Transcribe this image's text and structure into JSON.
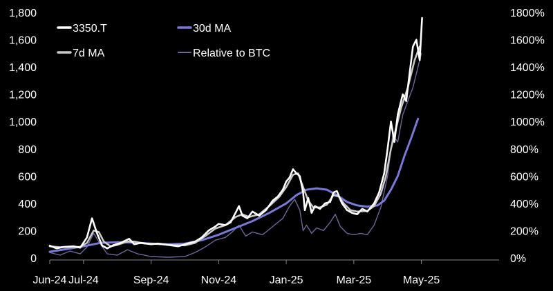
{
  "chart_data": {
    "type": "line",
    "title": "",
    "xlabel": "",
    "ylabel": "",
    "x_tick_labels": [
      "Jun-24",
      "Jul-24",
      "Sep-24",
      "Nov-24",
      "Jan-25",
      "Mar-25",
      "May-25"
    ],
    "x_tick_months": [
      0,
      1,
      3,
      5,
      7,
      9,
      11
    ],
    "left_axis": {
      "ticks": [
        0,
        200,
        400,
        600,
        800,
        1000,
        1200,
        1400,
        1600,
        1800
      ],
      "tick_labels": [
        "0",
        "200",
        "400",
        "600",
        "800",
        "1,000",
        "1,200",
        "1,400",
        "1,600",
        "1,800"
      ],
      "ylim": [
        0,
        1800
      ]
    },
    "right_axis": {
      "ticks": [
        0,
        200,
        400,
        600,
        800,
        1000,
        1200,
        1400,
        1600,
        1800
      ],
      "tick_labels": [
        "0%",
        "200%",
        "400%",
        "600%",
        "800%",
        "1000%",
        "1200%",
        "1400%",
        "1600%",
        "1800%"
      ],
      "ylim": [
        0,
        1800
      ]
    },
    "xlim_months": [
      0,
      13.3
    ],
    "grid": false,
    "legend": {
      "placement": "top-left"
    },
    "series": [
      {
        "name": "3350.T",
        "axis": "left",
        "color": "#ffffff",
        "width": 2.6,
        "points": [
          [
            0,
            90
          ],
          [
            0.2,
            70
          ],
          [
            0.4,
            80
          ],
          [
            0.7,
            85
          ],
          [
            0.9,
            75
          ],
          [
            1.1,
            150
          ],
          [
            1.25,
            290
          ],
          [
            1.4,
            180
          ],
          [
            1.55,
            90
          ],
          [
            1.7,
            70
          ],
          [
            1.9,
            95
          ],
          [
            2.1,
            110
          ],
          [
            2.35,
            140
          ],
          [
            2.5,
            100
          ],
          [
            2.7,
            110
          ],
          [
            3.0,
            100
          ],
          [
            3.2,
            105
          ],
          [
            3.5,
            95
          ],
          [
            3.8,
            85
          ],
          [
            4.0,
            100
          ],
          [
            4.3,
            120
          ],
          [
            4.5,
            150
          ],
          [
            4.7,
            200
          ],
          [
            4.9,
            230
          ],
          [
            5.0,
            250
          ],
          [
            5.2,
            240
          ],
          [
            5.35,
            260
          ],
          [
            5.5,
            330
          ],
          [
            5.6,
            380
          ],
          [
            5.7,
            310
          ],
          [
            5.85,
            290
          ],
          [
            6.0,
            340
          ],
          [
            6.2,
            310
          ],
          [
            6.4,
            350
          ],
          [
            6.6,
            420
          ],
          [
            6.75,
            450
          ],
          [
            6.9,
            500
          ],
          [
            7.0,
            560
          ],
          [
            7.1,
            590
          ],
          [
            7.2,
            650
          ],
          [
            7.3,
            620
          ],
          [
            7.4,
            600
          ],
          [
            7.5,
            480
          ],
          [
            7.55,
            350
          ],
          [
            7.65,
            440
          ],
          [
            7.75,
            330
          ],
          [
            7.85,
            380
          ],
          [
            8.0,
            360
          ],
          [
            8.15,
            400
          ],
          [
            8.3,
            410
          ],
          [
            8.4,
            480
          ],
          [
            8.5,
            490
          ],
          [
            8.65,
            400
          ],
          [
            8.8,
            350
          ],
          [
            8.95,
            330
          ],
          [
            9.1,
            320
          ],
          [
            9.25,
            360
          ],
          [
            9.4,
            340
          ],
          [
            9.6,
            400
          ],
          [
            9.75,
            480
          ],
          [
            9.9,
            620
          ],
          [
            10.0,
            800
          ],
          [
            10.1,
            1000
          ],
          [
            10.2,
            850
          ],
          [
            10.3,
            1050
          ],
          [
            10.45,
            1200
          ],
          [
            10.55,
            1150
          ],
          [
            10.65,
            1350
          ],
          [
            10.75,
            1550
          ],
          [
            10.85,
            1600
          ],
          [
            10.95,
            1450
          ],
          [
            11.02,
            1760
          ]
        ]
      },
      {
        "name": "7d MA",
        "axis": "left",
        "color": "#c9c9c9",
        "width": 2.6,
        "points": [
          [
            0,
            85
          ],
          [
            0.3,
            78
          ],
          [
            0.6,
            82
          ],
          [
            0.9,
            80
          ],
          [
            1.1,
            110
          ],
          [
            1.3,
            200
          ],
          [
            1.45,
            190
          ],
          [
            1.6,
            120
          ],
          [
            1.8,
            85
          ],
          [
            2.0,
            95
          ],
          [
            2.3,
            120
          ],
          [
            2.5,
            120
          ],
          [
            2.8,
            105
          ],
          [
            3.2,
            102
          ],
          [
            3.6,
            95
          ],
          [
            4.0,
            92
          ],
          [
            4.3,
            110
          ],
          [
            4.6,
            160
          ],
          [
            4.9,
            215
          ],
          [
            5.2,
            240
          ],
          [
            5.5,
            300
          ],
          [
            5.7,
            320
          ],
          [
            5.9,
            300
          ],
          [
            6.2,
            320
          ],
          [
            6.5,
            380
          ],
          [
            6.8,
            450
          ],
          [
            7.0,
            520
          ],
          [
            7.2,
            610
          ],
          [
            7.35,
            620
          ],
          [
            7.5,
            520
          ],
          [
            7.65,
            420
          ],
          [
            7.8,
            370
          ],
          [
            8.0,
            370
          ],
          [
            8.2,
            390
          ],
          [
            8.4,
            460
          ],
          [
            8.55,
            450
          ],
          [
            8.7,
            400
          ],
          [
            8.9,
            350
          ],
          [
            9.1,
            340
          ],
          [
            9.4,
            345
          ],
          [
            9.6,
            380
          ],
          [
            9.8,
            470
          ],
          [
            9.95,
            600
          ],
          [
            10.1,
            800
          ],
          [
            10.25,
            950
          ],
          [
            10.4,
            1100
          ],
          [
            10.6,
            1250
          ],
          [
            10.8,
            1450
          ],
          [
            10.95,
            1550
          ]
        ]
      },
      {
        "name": "30d MA",
        "axis": "left",
        "color": "#7b78d6",
        "width": 3,
        "points": [
          [
            0,
            45
          ],
          [
            0.5,
            65
          ],
          [
            1.0,
            85
          ],
          [
            1.5,
            110
          ],
          [
            2.0,
            115
          ],
          [
            2.5,
            112
          ],
          [
            3.0,
            105
          ],
          [
            3.5,
            100
          ],
          [
            4.0,
            105
          ],
          [
            4.5,
            130
          ],
          [
            5.0,
            170
          ],
          [
            5.5,
            220
          ],
          [
            6.0,
            270
          ],
          [
            6.5,
            330
          ],
          [
            7.0,
            400
          ],
          [
            7.3,
            460
          ],
          [
            7.6,
            500
          ],
          [
            7.9,
            510
          ],
          [
            8.2,
            500
          ],
          [
            8.5,
            460
          ],
          [
            8.8,
            410
          ],
          [
            9.1,
            385
          ],
          [
            9.4,
            375
          ],
          [
            9.7,
            385
          ],
          [
            9.9,
            420
          ],
          [
            10.1,
            500
          ],
          [
            10.3,
            600
          ],
          [
            10.5,
            750
          ],
          [
            10.7,
            880
          ],
          [
            10.9,
            1020
          ]
        ]
      },
      {
        "name": "Relative to BTC",
        "axis": "right",
        "color": "#6f6896",
        "width": 1.4,
        "points": [
          [
            0,
            40
          ],
          [
            0.3,
            20
          ],
          [
            0.6,
            50
          ],
          [
            0.9,
            30
          ],
          [
            1.1,
            80
          ],
          [
            1.3,
            180
          ],
          [
            1.5,
            100
          ],
          [
            1.7,
            30
          ],
          [
            2.0,
            20
          ],
          [
            2.3,
            60
          ],
          [
            2.6,
            30
          ],
          [
            3.0,
            10
          ],
          [
            3.5,
            5
          ],
          [
            4.0,
            10
          ],
          [
            4.3,
            40
          ],
          [
            4.6,
            80
          ],
          [
            4.9,
            130
          ],
          [
            5.2,
            150
          ],
          [
            5.4,
            190
          ],
          [
            5.6,
            240
          ],
          [
            5.8,
            160
          ],
          [
            6.0,
            190
          ],
          [
            6.3,
            170
          ],
          [
            6.6,
            230
          ],
          [
            6.9,
            290
          ],
          [
            7.1,
            380
          ],
          [
            7.25,
            430
          ],
          [
            7.4,
            350
          ],
          [
            7.5,
            200
          ],
          [
            7.6,
            240
          ],
          [
            7.75,
            180
          ],
          [
            7.9,
            220
          ],
          [
            8.1,
            200
          ],
          [
            8.3,
            260
          ],
          [
            8.45,
            320
          ],
          [
            8.6,
            230
          ],
          [
            8.8,
            180
          ],
          [
            9.0,
            170
          ],
          [
            9.2,
            180
          ],
          [
            9.4,
            170
          ],
          [
            9.6,
            240
          ],
          [
            9.8,
            370
          ],
          [
            10.0,
            600
          ],
          [
            10.15,
            900
          ],
          [
            10.3,
            850
          ],
          [
            10.45,
            1050
          ],
          [
            10.6,
            1150
          ],
          [
            10.75,
            1250
          ],
          [
            10.9,
            1400
          ],
          [
            11.0,
            1500
          ]
        ]
      }
    ]
  }
}
